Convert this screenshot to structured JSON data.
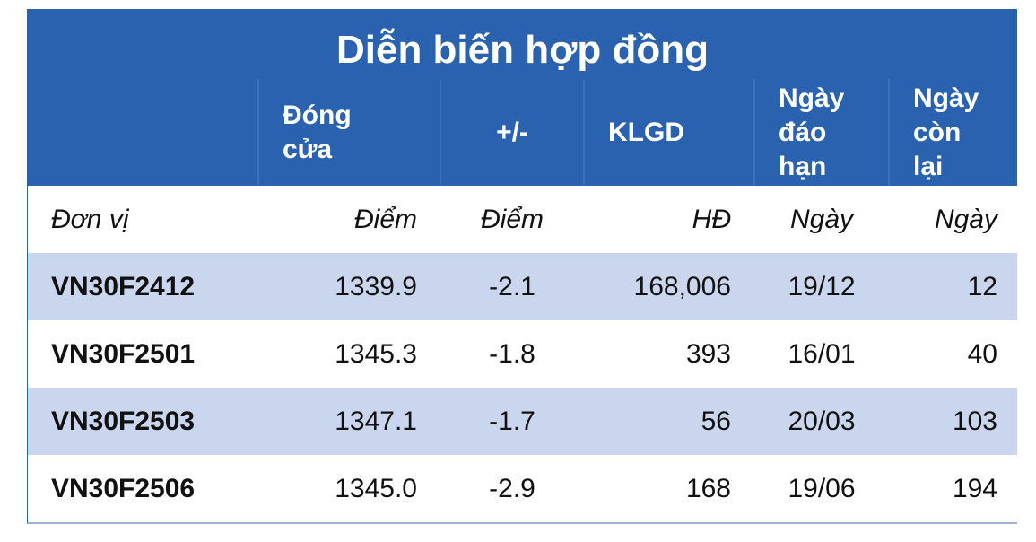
{
  "title": "Diễn biến hợp đồng",
  "table": {
    "header": [
      "",
      "Đóng cửa",
      "+/-",
      "KLGD",
      "Ngày đáo hạn",
      "Ngày còn lại"
    ],
    "units": [
      "Đơn vị",
      "Điểm",
      "Điểm",
      "HĐ",
      "Ngày",
      "Ngày"
    ],
    "rows": [
      [
        "VN30F2412",
        "1339.9",
        "-2.1",
        "168,006",
        "19/12",
        "12"
      ],
      [
        "VN30F2501",
        "1345.3",
        "-1.8",
        "393",
        "16/01",
        "40"
      ],
      [
        "VN30F2503",
        "1347.1",
        "-1.7",
        "56",
        "20/03",
        "103"
      ],
      [
        "VN30F2506",
        "1345.0",
        "-2.9",
        "168",
        "19/06",
        "194"
      ]
    ]
  }
}
